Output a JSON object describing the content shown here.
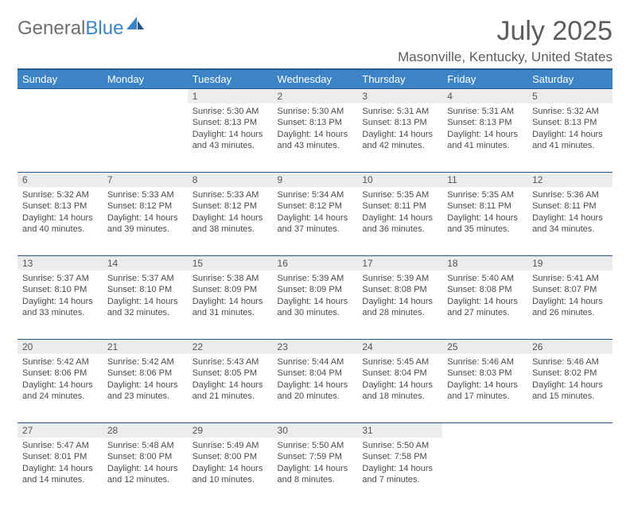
{
  "brand": {
    "part1": "General",
    "part2": "Blue"
  },
  "title": "July 2025",
  "location": "Masonville, Kentucky, United States",
  "colors": {
    "header_bg": "#3d84c6",
    "header_text": "#ffffff",
    "border": "#21588d",
    "daynum_bg": "#ececec",
    "text": "#4a4a4a"
  },
  "dayHeaders": [
    "Sunday",
    "Monday",
    "Tuesday",
    "Wednesday",
    "Thursday",
    "Friday",
    "Saturday"
  ],
  "weeks": [
    [
      null,
      null,
      {
        "n": "1",
        "sr": "5:30 AM",
        "ss": "8:13 PM",
        "dl": "14 hours and 43 minutes."
      },
      {
        "n": "2",
        "sr": "5:30 AM",
        "ss": "8:13 PM",
        "dl": "14 hours and 43 minutes."
      },
      {
        "n": "3",
        "sr": "5:31 AM",
        "ss": "8:13 PM",
        "dl": "14 hours and 42 minutes."
      },
      {
        "n": "4",
        "sr": "5:31 AM",
        "ss": "8:13 PM",
        "dl": "14 hours and 41 minutes."
      },
      {
        "n": "5",
        "sr": "5:32 AM",
        "ss": "8:13 PM",
        "dl": "14 hours and 41 minutes."
      }
    ],
    [
      {
        "n": "6",
        "sr": "5:32 AM",
        "ss": "8:13 PM",
        "dl": "14 hours and 40 minutes."
      },
      {
        "n": "7",
        "sr": "5:33 AM",
        "ss": "8:12 PM",
        "dl": "14 hours and 39 minutes."
      },
      {
        "n": "8",
        "sr": "5:33 AM",
        "ss": "8:12 PM",
        "dl": "14 hours and 38 minutes."
      },
      {
        "n": "9",
        "sr": "5:34 AM",
        "ss": "8:12 PM",
        "dl": "14 hours and 37 minutes."
      },
      {
        "n": "10",
        "sr": "5:35 AM",
        "ss": "8:11 PM",
        "dl": "14 hours and 36 minutes."
      },
      {
        "n": "11",
        "sr": "5:35 AM",
        "ss": "8:11 PM",
        "dl": "14 hours and 35 minutes."
      },
      {
        "n": "12",
        "sr": "5:36 AM",
        "ss": "8:11 PM",
        "dl": "14 hours and 34 minutes."
      }
    ],
    [
      {
        "n": "13",
        "sr": "5:37 AM",
        "ss": "8:10 PM",
        "dl": "14 hours and 33 minutes."
      },
      {
        "n": "14",
        "sr": "5:37 AM",
        "ss": "8:10 PM",
        "dl": "14 hours and 32 minutes."
      },
      {
        "n": "15",
        "sr": "5:38 AM",
        "ss": "8:09 PM",
        "dl": "14 hours and 31 minutes."
      },
      {
        "n": "16",
        "sr": "5:39 AM",
        "ss": "8:09 PM",
        "dl": "14 hours and 30 minutes."
      },
      {
        "n": "17",
        "sr": "5:39 AM",
        "ss": "8:08 PM",
        "dl": "14 hours and 28 minutes."
      },
      {
        "n": "18",
        "sr": "5:40 AM",
        "ss": "8:08 PM",
        "dl": "14 hours and 27 minutes."
      },
      {
        "n": "19",
        "sr": "5:41 AM",
        "ss": "8:07 PM",
        "dl": "14 hours and 26 minutes."
      }
    ],
    [
      {
        "n": "20",
        "sr": "5:42 AM",
        "ss": "8:06 PM",
        "dl": "14 hours and 24 minutes."
      },
      {
        "n": "21",
        "sr": "5:42 AM",
        "ss": "8:06 PM",
        "dl": "14 hours and 23 minutes."
      },
      {
        "n": "22",
        "sr": "5:43 AM",
        "ss": "8:05 PM",
        "dl": "14 hours and 21 minutes."
      },
      {
        "n": "23",
        "sr": "5:44 AM",
        "ss": "8:04 PM",
        "dl": "14 hours and 20 minutes."
      },
      {
        "n": "24",
        "sr": "5:45 AM",
        "ss": "8:04 PM",
        "dl": "14 hours and 18 minutes."
      },
      {
        "n": "25",
        "sr": "5:46 AM",
        "ss": "8:03 PM",
        "dl": "14 hours and 17 minutes."
      },
      {
        "n": "26",
        "sr": "5:46 AM",
        "ss": "8:02 PM",
        "dl": "14 hours and 15 minutes."
      }
    ],
    [
      {
        "n": "27",
        "sr": "5:47 AM",
        "ss": "8:01 PM",
        "dl": "14 hours and 14 minutes."
      },
      {
        "n": "28",
        "sr": "5:48 AM",
        "ss": "8:00 PM",
        "dl": "14 hours and 12 minutes."
      },
      {
        "n": "29",
        "sr": "5:49 AM",
        "ss": "8:00 PM",
        "dl": "14 hours and 10 minutes."
      },
      {
        "n": "30",
        "sr": "5:50 AM",
        "ss": "7:59 PM",
        "dl": "14 hours and 8 minutes."
      },
      {
        "n": "31",
        "sr": "5:50 AM",
        "ss": "7:58 PM",
        "dl": "14 hours and 7 minutes."
      },
      null,
      null
    ]
  ],
  "labels": {
    "sunrise": "Sunrise:",
    "sunset": "Sunset:",
    "daylight": "Daylight:"
  }
}
